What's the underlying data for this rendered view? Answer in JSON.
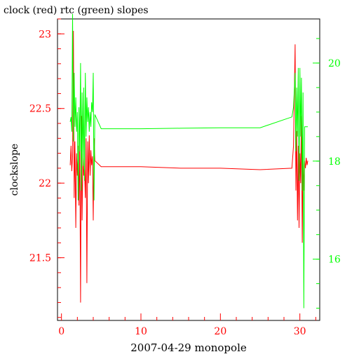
{
  "title": "clock (red) rtc (green) slopes",
  "chart_data": {
    "type": "line",
    "title": "clock (red) rtc (green) slopes",
    "xlabel": "2007-04-29 monopole",
    "ylabel": "clockslope",
    "xlim": [
      -0.5,
      32.5
    ],
    "ylim": [
      21.08,
      23.1
    ],
    "y2lim": [
      14.75,
      20.9
    ],
    "x_ticks": [
      0,
      10,
      20,
      30
    ],
    "y_ticks": [
      21.5,
      22,
      22.5,
      23
    ],
    "y_tick_labels": [
      "21.5",
      "22",
      "22.5",
      "23"
    ],
    "y2_ticks": [
      16,
      18,
      20
    ],
    "colors": {
      "clock": "#ff0000",
      "rtc": "#00ff00",
      "axis": "#000000"
    },
    "series": [
      {
        "axis": "left",
        "color": "#ff0000",
        "x": [
          1.1,
          1.2,
          1.3,
          1.4,
          1.5,
          1.6,
          1.7,
          1.8,
          1.9,
          2.0,
          2.1,
          2.2,
          2.3,
          2.4,
          2.5,
          2.6,
          2.7,
          2.8,
          2.9,
          3.0,
          3.1,
          3.2,
          3.3,
          3.4,
          3.5,
          3.6,
          3.7,
          3.8,
          3.9,
          4.0,
          4.1,
          4.2,
          5,
          10,
          15,
          20,
          25,
          29.0,
          29.2,
          29.4,
          29.5,
          29.6,
          29.7,
          29.8,
          29.9,
          30.0,
          30.1,
          30.2,
          30.3,
          30.4,
          30.5,
          30.6,
          30.7,
          30.8,
          30.9,
          31.0
        ],
        "y": [
          22.12,
          22.25,
          22.08,
          22.18,
          23.02,
          21.9,
          22.28,
          21.7,
          22.2,
          22.05,
          22.25,
          21.85,
          22.3,
          21.2,
          22.45,
          21.75,
          22.2,
          22.05,
          22.1,
          21.9,
          22.3,
          21.33,
          22.28,
          22.0,
          22.32,
          22.05,
          22.22,
          22.12,
          22.18,
          21.75,
          22.3,
          22.15,
          22.11,
          22.11,
          22.1,
          22.1,
          22.09,
          22.1,
          22.25,
          22.93,
          21.95,
          22.35,
          21.75,
          22.25,
          21.7,
          22.2,
          22.0,
          22.45,
          21.6,
          22.22,
          21.95,
          22.15,
          22.1,
          22.17,
          22.12,
          22.15
        ]
      },
      {
        "axis": "right",
        "color": "#00ff00",
        "x": [
          1.1,
          1.2,
          1.3,
          1.4,
          1.5,
          1.6,
          1.7,
          1.8,
          1.9,
          2.0,
          2.1,
          2.2,
          2.3,
          2.4,
          2.5,
          2.6,
          2.7,
          2.8,
          2.9,
          3.0,
          3.1,
          3.2,
          3.3,
          3.4,
          3.5,
          3.6,
          3.7,
          3.8,
          3.9,
          4.0,
          4.1,
          4.2,
          5,
          10,
          15,
          20,
          25,
          29.0,
          29.2,
          29.4,
          29.5,
          29.6,
          29.7,
          29.8,
          29.9,
          30.0,
          30.1,
          30.2,
          30.3,
          30.4,
          30.5,
          30.6,
          30.7,
          30.8,
          30.9,
          31.0
        ],
        "y": [
          18.8,
          18.9,
          18.6,
          21.0,
          18.4,
          19.8,
          18.7,
          19.3,
          18.6,
          19.0,
          17.2,
          19.1,
          18.2,
          20.0,
          17.4,
          19.4,
          17.9,
          19.5,
          17.6,
          19.8,
          18.5,
          19.3,
          18.8,
          19.1,
          18.6,
          19.0,
          18.7,
          19.2,
          19.0,
          19.8,
          17.2,
          18.95,
          18.66,
          18.66,
          18.67,
          18.68,
          18.68,
          18.9,
          19.1,
          19.8,
          18.2,
          19.5,
          18.5,
          19.9,
          17.6,
          19.9,
          18.5,
          19.7,
          17.4,
          19.4,
          15.0,
          18.7,
          18.7,
          18.7,
          18.7,
          18.7
        ]
      }
    ]
  }
}
